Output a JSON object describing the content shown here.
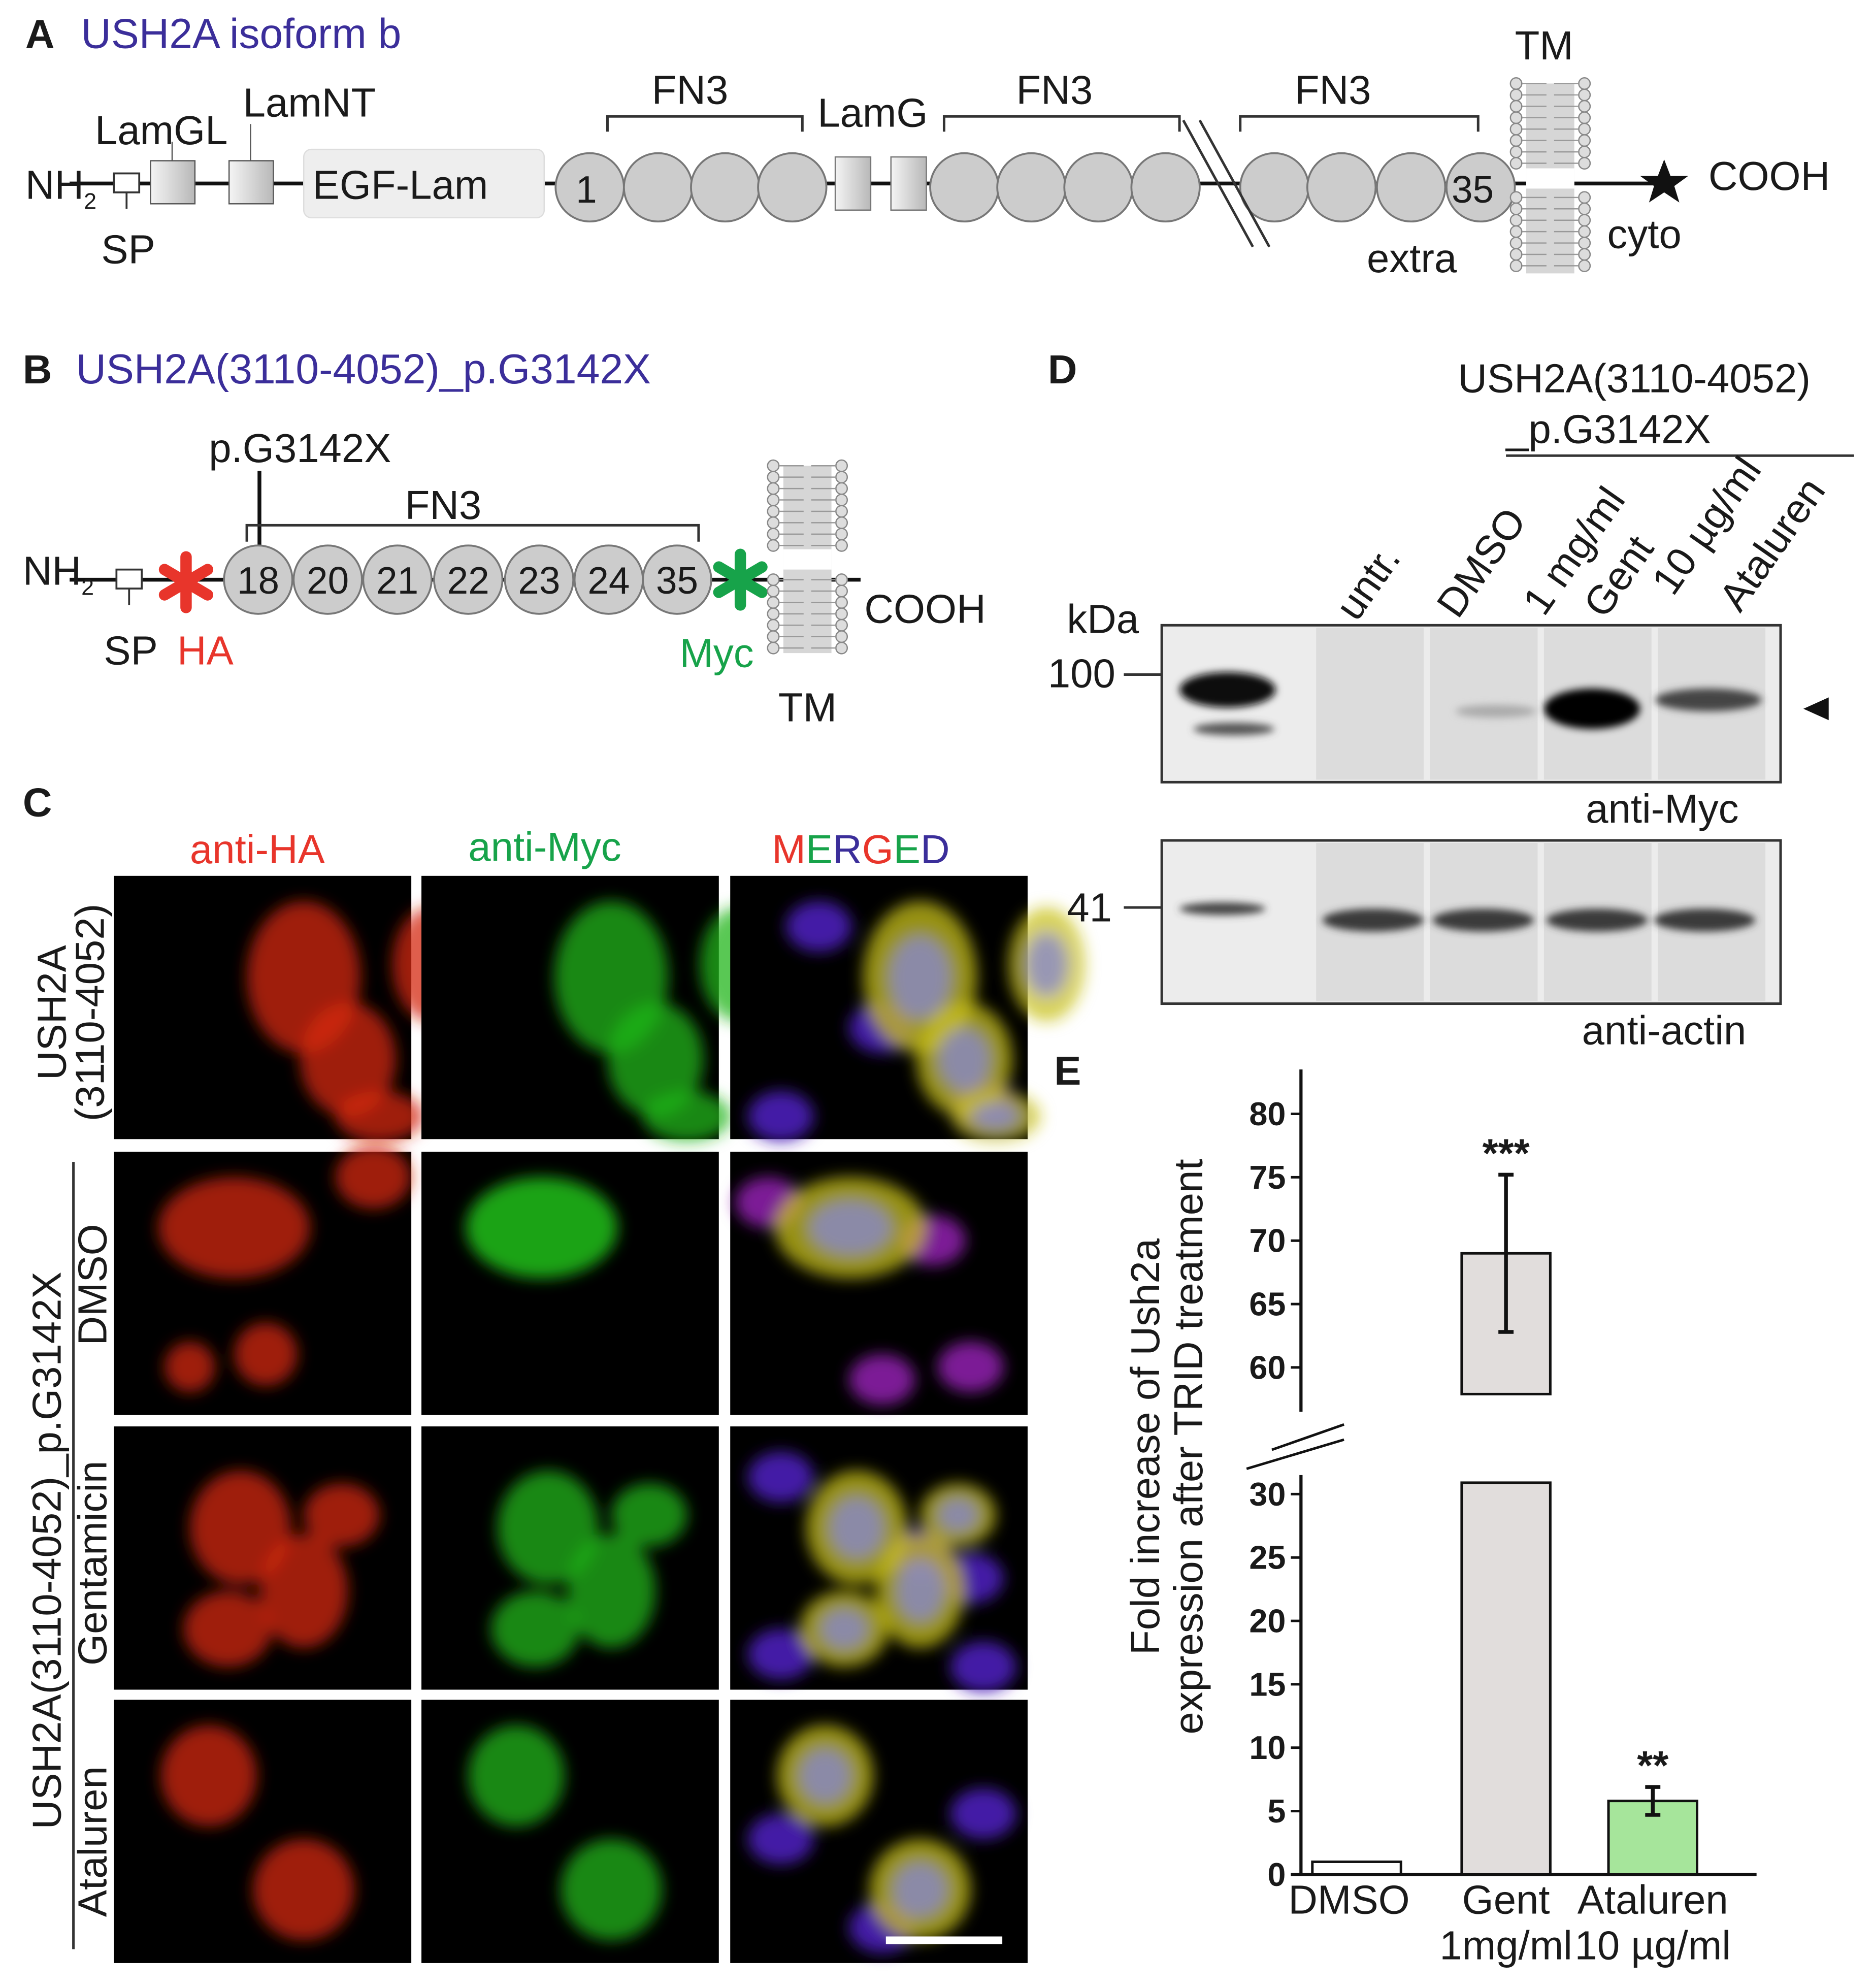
{
  "panel_a": {
    "letter": "A",
    "title": "USH2A isoform b",
    "nh2": [
      "NH",
      "2"
    ],
    "sp": "SP",
    "lamgl": "LamGL",
    "lamnt": "LamNT",
    "egf_lam": "EGF-Lam",
    "fn3_labels": [
      "FN3",
      "FN3",
      "FN3"
    ],
    "lamg": "LamG",
    "domain_first": "1",
    "domain_last": "35",
    "tm": "TM",
    "cooh": "COOH",
    "cyto": "cyto",
    "extra": "extra"
  },
  "panel_b": {
    "letter": "B",
    "title": "USH2A(3110-4052)_p.G3142X",
    "mutation": "p.G3142X",
    "fn3": "FN3",
    "nh2": [
      "NH",
      "2"
    ],
    "sp": "SP",
    "ha": "HA",
    "domains": [
      "18",
      "20",
      "21",
      "22",
      "23",
      "24",
      "35"
    ],
    "myc": "Myc",
    "cooh": "COOH",
    "tm": "TM"
  },
  "panel_c": {
    "letter": "C",
    "columns": [
      "anti-HA",
      "anti-Myc"
    ],
    "merged": [
      {
        "text": "M",
        "color": "#e8352b"
      },
      {
        "text": "E",
        "color": "#17a34a"
      },
      {
        "text": "R",
        "color": "#3b2e9a"
      },
      {
        "text": "G",
        "color": "#e8352b"
      },
      {
        "text": "E",
        "color": "#17a34a"
      },
      {
        "text": "D",
        "color": "#3b2e9a"
      }
    ],
    "row_group_1": [
      "USH2A",
      "(3110-4052)"
    ],
    "row_group_2": "USH2A(3110-4052)_p.G3142X",
    "treatments": [
      "DMSO",
      "Gentamicin",
      "Ataluren"
    ]
  },
  "panel_d": {
    "letter": "D",
    "construct": [
      "USH2A(3110-4052)",
      "_p.G3142X"
    ],
    "lanes": [
      [
        "untr."
      ],
      [
        "DMSO"
      ],
      [
        "1 mg/ml",
        "Gent"
      ],
      [
        "10 µg/ml",
        "Ataluren"
      ]
    ],
    "kda": "kDa",
    "markers": [
      100,
      41
    ],
    "blots": [
      "anti-Myc",
      "anti-actin"
    ]
  },
  "panel_e_letter": "E",
  "chart_data": {
    "type": "bar",
    "categories": [
      [
        "DMSO"
      ],
      [
        "Gent",
        "1mg/ml"
      ],
      [
        "Ataluren",
        "10 µg/ml"
      ]
    ],
    "values": [
      1,
      69,
      5.8
    ],
    "errors": [
      null,
      6.2,
      1.1
    ],
    "colors": [
      "#ffffff",
      "#e1dddc",
      "#a6e59b"
    ],
    "annotations": [
      null,
      "***",
      "**"
    ],
    "ylabel": [
      "Fold increase of Ush2a",
      "expression after TRID treatment"
    ],
    "ylim": [
      0,
      83.5
    ],
    "y_break": [
      31.5,
      56.5
    ],
    "yticks": [
      0,
      5,
      10,
      15,
      20,
      25,
      30,
      60,
      65,
      70,
      75,
      80
    ]
  }
}
